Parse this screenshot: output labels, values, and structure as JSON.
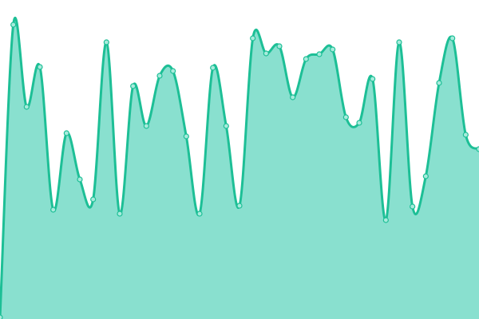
{
  "chart_data": {
    "type": "area",
    "title": "",
    "xlabel": "",
    "ylabel": "",
    "x": [
      0,
      1,
      2,
      3,
      4,
      5,
      6,
      7,
      8,
      9,
      10,
      11,
      12,
      13,
      14,
      15,
      16,
      17,
      18,
      19,
      20,
      21,
      22,
      23,
      24,
      25,
      26,
      27,
      28,
      29,
      30,
      31,
      32,
      33,
      34,
      35,
      36
    ],
    "values": [
      2,
      369,
      266,
      316,
      137,
      233,
      175,
      150,
      347,
      132,
      292,
      242,
      305,
      311,
      229,
      132,
      315,
      242,
      142,
      352,
      333,
      342,
      278,
      326,
      332,
      338,
      253,
      246,
      301,
      124,
      347,
      141,
      179,
      296,
      352,
      231,
      213
    ],
    "ylim": [
      0,
      400
    ],
    "grid": false,
    "legend": "none",
    "colors": {
      "line": "#1dbf96",
      "fill": "#89e0cf",
      "point_fill": "#a8ebdc"
    }
  }
}
